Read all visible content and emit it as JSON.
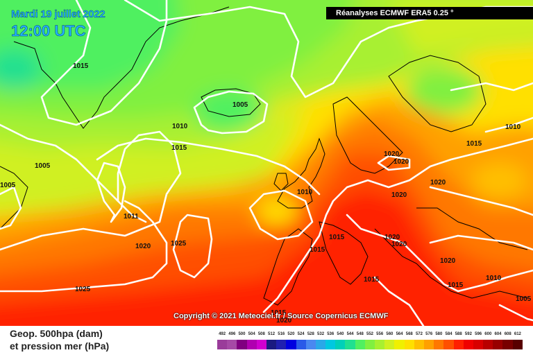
{
  "header": {
    "date": "Mardi 19 juillet 2022",
    "time": "12:00 UTC",
    "source": "Réanalyses ECMWF ERA5 0.25 °"
  },
  "footer": {
    "copyright": "Copyright © 2021 Meteociel.fr / Source Copernicus ECMWF",
    "legend_line1": "Geop. 500hpa (dam)",
    "legend_line2": "et pression mer (hPa)"
  },
  "colorbar": {
    "values": [
      "492",
      "496",
      "500",
      "504",
      "508",
      "512",
      "516",
      "520",
      "524",
      "528",
      "532",
      "536",
      "540",
      "544",
      "548",
      "552",
      "556",
      "560",
      "564",
      "568",
      "572",
      "576",
      "580",
      "584",
      "588",
      "592",
      "596",
      "600",
      "604",
      "608",
      "612"
    ],
    "colors": [
      "#9a3c9a",
      "#a64aa6",
      "#800080",
      "#b000b0",
      "#d000d0",
      "#1a1a80",
      "#2020b0",
      "#0000e0",
      "#2a5ae8",
      "#4a88f0",
      "#2aa8e8",
      "#00c8e0",
      "#00d0b8",
      "#20e090",
      "#50f060",
      "#80f040",
      "#a8f030",
      "#d0f020",
      "#f0f000",
      "#ffe000",
      "#ffc000",
      "#ffa000",
      "#ff7800",
      "#ff5000",
      "#ff2000",
      "#f00000",
      "#d80000",
      "#b80000",
      "#980000",
      "#780000",
      "#580000"
    ]
  },
  "isobar_labels": [
    {
      "text": "1015"
    },
    {
      "text": "1005"
    },
    {
      "text": "1010"
    },
    {
      "text": "1015"
    },
    {
      "text": "1005"
    },
    {
      "text": "1005"
    },
    {
      "text": "1010"
    },
    {
      "text": "1011"
    },
    {
      "text": "1020"
    },
    {
      "text": "1025"
    },
    {
      "text": "1025"
    },
    {
      "text": "1015"
    },
    {
      "text": "1015"
    },
    {
      "text": "1020"
    },
    {
      "text": "1020"
    },
    {
      "text": "1020"
    },
    {
      "text": "1020"
    },
    {
      "text": "1020"
    },
    {
      "text": "1020"
    },
    {
      "text": "1015"
    },
    {
      "text": "1015"
    },
    {
      "text": "1010"
    },
    {
      "text": "1010"
    },
    {
      "text": "1015"
    },
    {
      "text": "1020"
    },
    {
      "text": "1005"
    },
    {
      "text": "1005"
    },
    {
      "text": "1015"
    },
    {
      "text": "1020"
    }
  ]
}
